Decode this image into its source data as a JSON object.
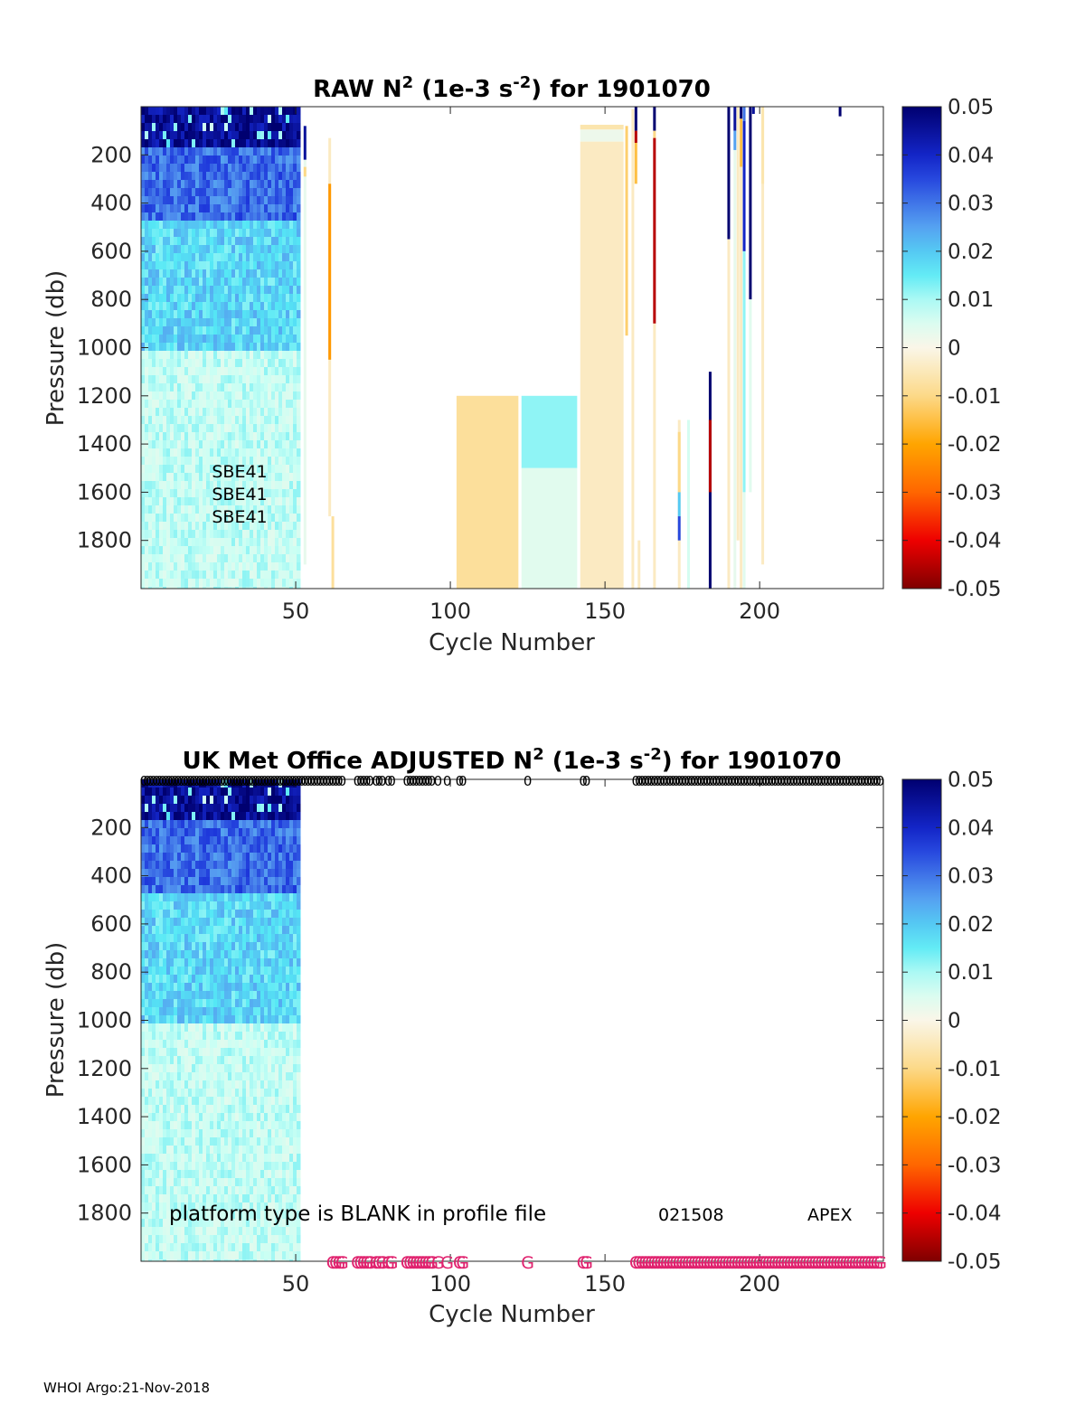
{
  "footer": "WHOI Argo:21-Nov-2018",
  "colorbar": {
    "ticks": [
      "0.05",
      "0.04",
      "0.03",
      "0.02",
      "0.01",
      "0",
      "-0.01",
      "-0.02",
      "-0.03",
      "-0.04",
      "-0.05"
    ],
    "range": [
      -0.05,
      0.05
    ]
  },
  "chart_data": [
    {
      "type": "heatmap",
      "title": {
        "main": "RAW N",
        "sup1": "2",
        "mid": " (1e-3 s",
        "sup2": "-2",
        "end": ") for 1901070"
      },
      "xlabel": "Cycle Number",
      "ylabel": "Pressure (db)",
      "xlim": [
        0,
        240
      ],
      "ylim": [
        2000,
        0
      ],
      "xticks": [
        "50",
        "100",
        "150",
        "200"
      ],
      "yticks": [
        "200",
        "400",
        "600",
        "800",
        "1000",
        "1200",
        "1400",
        "1600",
        "1800"
      ],
      "sensor_labels": [
        "SBE41",
        "SBE41",
        "SBE41"
      ],
      "blocks": [
        {
          "x0": 102,
          "x1": 122,
          "p0": 1200,
          "p1": 2000,
          "v": -0.008
        },
        {
          "x0": 123,
          "x1": 141,
          "p0": 1200,
          "p1": 1500,
          "v": 0.012
        },
        {
          "x0": 123,
          "x1": 141,
          "p0": 1500,
          "p1": 2000,
          "v": 0.004
        },
        {
          "x0": 142,
          "x1": 156,
          "p0": 75,
          "p1": 95,
          "v": -0.006
        },
        {
          "x0": 142,
          "x1": 156,
          "p0": 95,
          "p1": 145,
          "v": 0.002
        },
        {
          "x0": 142,
          "x1": 156,
          "p0": 145,
          "p1": 2000,
          "v": -0.004
        }
      ],
      "lines": [
        {
          "x": 53,
          "p0": 80,
          "p1": 1900,
          "v": 0.003
        },
        {
          "x": 53,
          "p0": 80,
          "p1": 220,
          "v": 0.045
        },
        {
          "x": 53,
          "p0": 250,
          "p1": 290,
          "v": -0.01
        },
        {
          "x": 61,
          "p0": 130,
          "p1": 1700,
          "v": -0.004
        },
        {
          "x": 61,
          "p0": 320,
          "p1": 1050,
          "v": -0.022
        },
        {
          "x": 62,
          "p0": 1700,
          "p1": 2000,
          "v": -0.008
        },
        {
          "x": 157,
          "p0": 80,
          "p1": 950,
          "v": -0.012
        },
        {
          "x": 159,
          "p0": 10,
          "p1": 2000,
          "v": -0.004
        },
        {
          "x": 160,
          "p0": 0,
          "p1": 100,
          "v": 0.05
        },
        {
          "x": 160,
          "p0": 100,
          "p1": 150,
          "v": -0.045
        },
        {
          "x": 160,
          "p0": 150,
          "p1": 320,
          "v": -0.015
        },
        {
          "x": 161,
          "p0": 1800,
          "p1": 2000,
          "v": -0.004
        },
        {
          "x": 166,
          "p0": 0,
          "p1": 100,
          "v": 0.05
        },
        {
          "x": 166,
          "p0": 100,
          "p1": 130,
          "v": -0.01
        },
        {
          "x": 166,
          "p0": 130,
          "p1": 900,
          "v": -0.045
        },
        {
          "x": 166,
          "p0": 900,
          "p1": 2000,
          "v": -0.004
        },
        {
          "x": 174,
          "p0": 1300,
          "p1": 2000,
          "v": -0.004
        },
        {
          "x": 174,
          "p0": 1350,
          "p1": 1600,
          "v": -0.01
        },
        {
          "x": 174,
          "p0": 1600,
          "p1": 1700,
          "v": 0.02
        },
        {
          "x": 174,
          "p0": 1700,
          "p1": 1800,
          "v": 0.035
        },
        {
          "x": 177,
          "p0": 1300,
          "p1": 2000,
          "v": 0.006
        },
        {
          "x": 184,
          "p0": 1100,
          "p1": 2000,
          "v": 0.05
        },
        {
          "x": 184,
          "p0": 1300,
          "p1": 1600,
          "v": -0.045
        },
        {
          "x": 190,
          "p0": 0,
          "p1": 550,
          "v": 0.05
        },
        {
          "x": 190,
          "p0": 550,
          "p1": 2000,
          "v": -0.004
        },
        {
          "x": 192,
          "p0": 0,
          "p1": 100,
          "v": 0.045
        },
        {
          "x": 192,
          "p0": 100,
          "p1": 180,
          "v": 0.025
        },
        {
          "x": 192,
          "p0": 180,
          "p1": 2000,
          "v": 0.003
        },
        {
          "x": 193,
          "p0": 0,
          "p1": 1800,
          "v": -0.004
        },
        {
          "x": 194,
          "p0": 0,
          "p1": 50,
          "v": 0.05
        },
        {
          "x": 194,
          "p0": 50,
          "p1": 250,
          "v": -0.015
        },
        {
          "x": 194,
          "p0": 250,
          "p1": 2000,
          "v": -0.004
        },
        {
          "x": 195,
          "p0": 0,
          "p1": 60,
          "v": 0.03
        },
        {
          "x": 195,
          "p0": 60,
          "p1": 600,
          "v": 0.04
        },
        {
          "x": 195,
          "p0": 600,
          "p1": 1600,
          "v": 0.012
        },
        {
          "x": 195,
          "p0": 1600,
          "p1": 2000,
          "v": 0.004
        },
        {
          "x": 197,
          "p0": 0,
          "p1": 800,
          "v": 0.05
        },
        {
          "x": 197,
          "p0": 800,
          "p1": 1600,
          "v": 0.004
        },
        {
          "x": 198,
          "p0": 0,
          "p1": 30,
          "v": 0.045
        },
        {
          "x": 201,
          "p0": 0,
          "p1": 1900,
          "v": -0.004
        },
        {
          "x": 201,
          "p0": 0,
          "p1": 320,
          "v": -0.006
        },
        {
          "x": 226,
          "p0": 0,
          "p1": 40,
          "v": 0.05
        }
      ]
    },
    {
      "type": "heatmap",
      "title": {
        "main": "UK Met Office  ADJUSTED N",
        "sup1": "2",
        "mid": " (1e-3 s",
        "sup2": "-2",
        "end": ") for 1901070"
      },
      "xlabel": "Cycle Number",
      "ylabel": "Pressure (db)",
      "xlim": [
        0,
        240
      ],
      "ylim": [
        2000,
        0
      ],
      "xticks": [
        "50",
        "100",
        "150",
        "200"
      ],
      "yticks": [
        "200",
        "400",
        "600",
        "800",
        "1000",
        "1200",
        "1400",
        "1600",
        "1800"
      ],
      "annotations": {
        "platform": "platform type is BLANK in profile file",
        "serial": "021508",
        "model": "APEX"
      },
      "top_marker": "0",
      "bottom_marker": "G",
      "top_marker_cycles": [
        1,
        2,
        3,
        4,
        5,
        6,
        7,
        8,
        9,
        10,
        11,
        12,
        13,
        14,
        15,
        16,
        17,
        18,
        19,
        20,
        21,
        22,
        23,
        24,
        25,
        26,
        27,
        28,
        29,
        30,
        31,
        32,
        33,
        34,
        35,
        36,
        37,
        38,
        39,
        40,
        41,
        42,
        43,
        44,
        45,
        46,
        47,
        48,
        49,
        50,
        51,
        52,
        53,
        54,
        55,
        56,
        57,
        58,
        59,
        60,
        61,
        62,
        63,
        64,
        65,
        70,
        71,
        72,
        73,
        74,
        76,
        77,
        78,
        80,
        81,
        86,
        87,
        88,
        89,
        90,
        91,
        92,
        93,
        94,
        96,
        99,
        103,
        104,
        125,
        143,
        144,
        160,
        161,
        162,
        163,
        164,
        165,
        166,
        167,
        168,
        169,
        170,
        171,
        172,
        173,
        174,
        175,
        176,
        177,
        178,
        179,
        180,
        181,
        182,
        183,
        184,
        185,
        186,
        187,
        188,
        189,
        190,
        191,
        192,
        193,
        194,
        195,
        196,
        197,
        198,
        199,
        200,
        201,
        202,
        203,
        204,
        205,
        206,
        207,
        208,
        209,
        210,
        211,
        212,
        213,
        214,
        215,
        216,
        217,
        218,
        219,
        220,
        221,
        222,
        223,
        224,
        225,
        226,
        227,
        228,
        229,
        230,
        231,
        232,
        233,
        234,
        235,
        236,
        237,
        238,
        239
      ],
      "bottom_marker_cycles": [
        62,
        63,
        64,
        65,
        70,
        71,
        72,
        73,
        74,
        76,
        77,
        78,
        80,
        81,
        86,
        87,
        88,
        89,
        90,
        91,
        92,
        93,
        94,
        96,
        99,
        103,
        104,
        125,
        143,
        144,
        160,
        161,
        162,
        163,
        164,
        165,
        166,
        167,
        168,
        169,
        170,
        171,
        172,
        173,
        174,
        175,
        176,
        177,
        178,
        179,
        180,
        181,
        182,
        183,
        184,
        185,
        186,
        187,
        188,
        189,
        190,
        191,
        192,
        193,
        194,
        195,
        196,
        197,
        198,
        199,
        200,
        201,
        202,
        203,
        204,
        205,
        206,
        207,
        208,
        209,
        210,
        211,
        212,
        213,
        214,
        215,
        216,
        217,
        218,
        219,
        220,
        221,
        222,
        223,
        224,
        225,
        226,
        227,
        228,
        229,
        230,
        231,
        232,
        233,
        234,
        235,
        236,
        237,
        238,
        239
      ]
    }
  ]
}
